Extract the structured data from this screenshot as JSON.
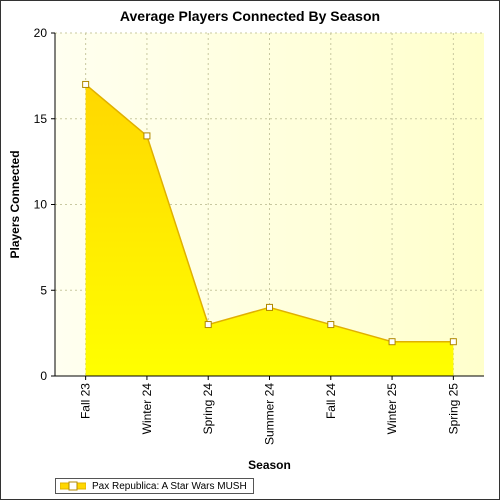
{
  "chart_data": {
    "type": "area",
    "title": "Average Players Connected By Season",
    "xlabel": "Season",
    "ylabel": "Players Connected",
    "categories": [
      "Fall 23",
      "Winter 24",
      "Spring 24",
      "Summer 24",
      "Fall 24",
      "Winter 25",
      "Spring 25"
    ],
    "series": [
      {
        "name": "Pax Republica: A Star Wars MUSH",
        "values": [
          17,
          14,
          3,
          4,
          3,
          2,
          2
        ]
      }
    ],
    "ylim": [
      0,
      20
    ],
    "yticks": [
      0,
      5,
      10,
      15,
      20
    ],
    "grid": true,
    "legend_position": "bottom-left",
    "colors": {
      "plot_bg_top": "#FFFFF0",
      "plot_bg_bottom": "#FFFFCC",
      "fill_top": "#FFD700",
      "fill_bottom": "#FFFF00",
      "line": "#E0B000",
      "grid": "#C8C8A0"
    }
  }
}
